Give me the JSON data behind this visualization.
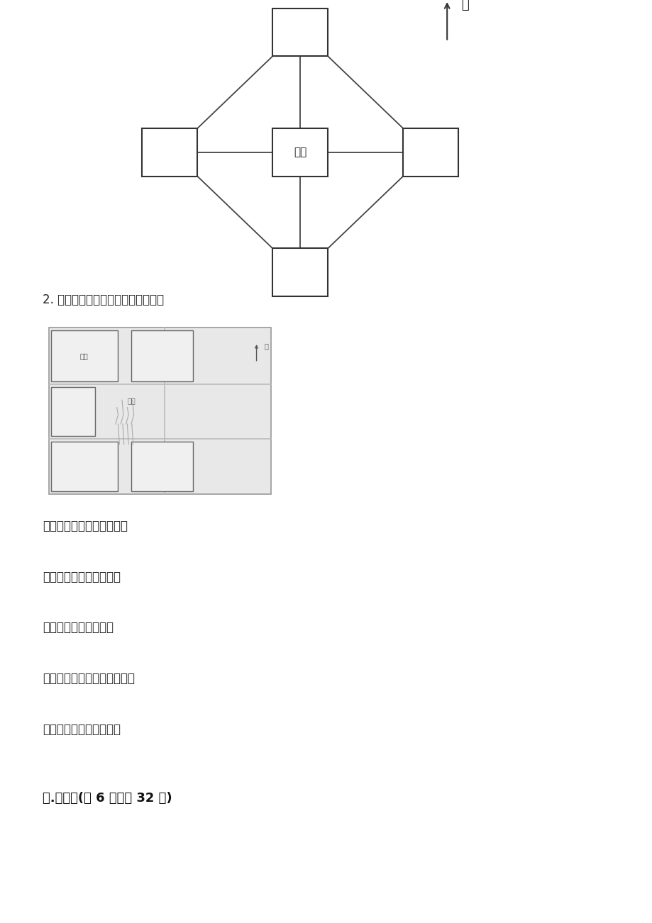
{
  "bg_color": "#ffffff",
  "center_label": "小静",
  "north_label": "北",
  "question2_text": "2. 根据描述在图中标出物体的位置。",
  "map_label_yuanlin": "园林",
  "map_label_jiasha": "假山",
  "text_lines": [
    "小卖部在假山的东北方向。",
    "草坪在假山的西南方向。",
    "游乐园在草坪的北面。",
    "大门在草坪和游乐园的中间。",
    "餐厅在假山的东南方向。"
  ],
  "section_title": "六.解答题(共 6 题，共 32 分)"
}
